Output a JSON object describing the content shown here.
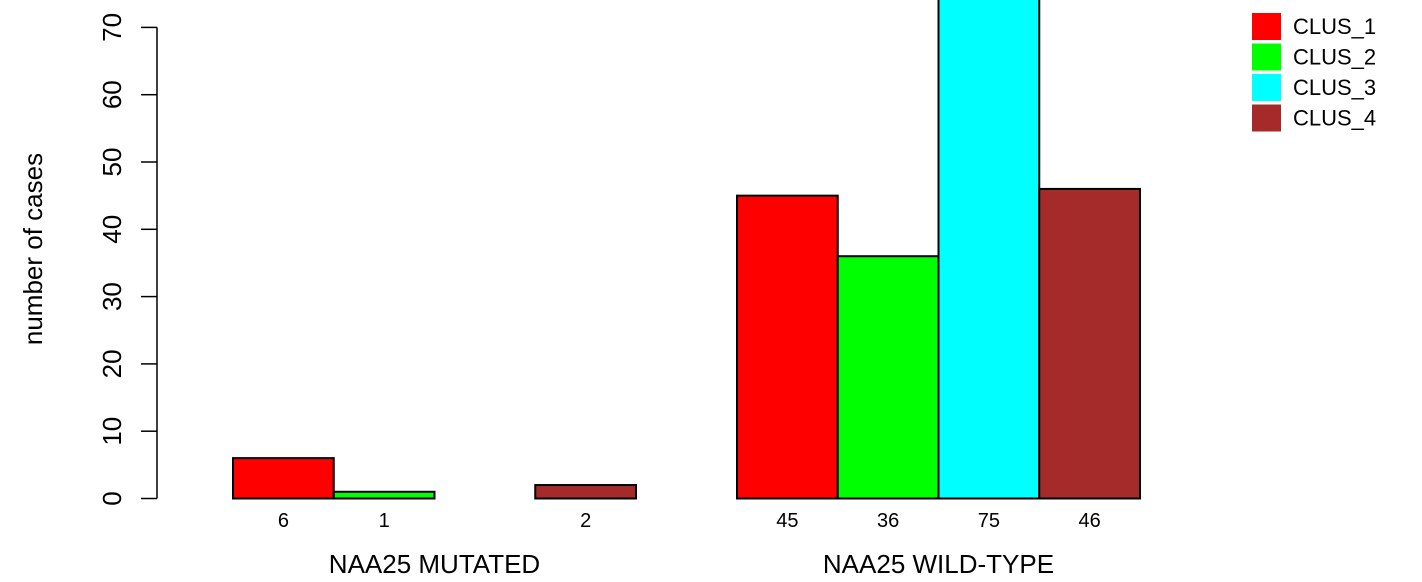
{
  "chart_data": {
    "type": "bar",
    "ylabel": "number of cases",
    "ylim": [
      0,
      75
    ],
    "yticks": [
      0,
      10,
      20,
      30,
      40,
      50,
      60,
      70
    ],
    "grid": false,
    "legend_position": "top-right",
    "groups": [
      {
        "label": "NAA25 MUTATED",
        "values": [
          6,
          1,
          0,
          2
        ],
        "value_labels": [
          "6",
          "1",
          "",
          "2"
        ]
      },
      {
        "label": "NAA25 WILD-TYPE",
        "values": [
          45,
          36,
          75,
          46
        ],
        "value_labels": [
          "45",
          "36",
          "75",
          "46"
        ]
      }
    ],
    "series": [
      {
        "name": "CLUS_1",
        "color": "#ff0000"
      },
      {
        "name": "CLUS_2",
        "color": "#00ff00"
      },
      {
        "name": "CLUS_3",
        "color": "#00ffff"
      },
      {
        "name": "CLUS_4",
        "color": "#a52a2a"
      }
    ]
  }
}
